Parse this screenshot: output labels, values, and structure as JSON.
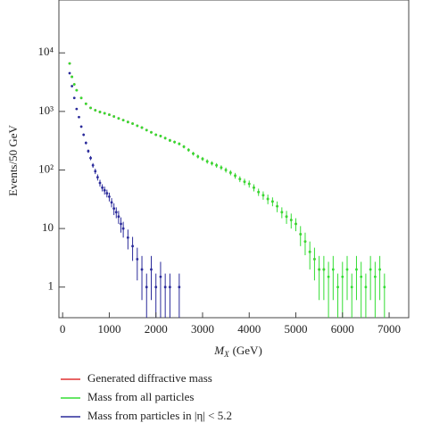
{
  "chart_data": {
    "type": "scatter",
    "x_label": "M",
    "x_label_sub": "X",
    "x_label_unit": "(GeV)",
    "y_label": "Events/50 GeV",
    "xlim": [
      -80,
      7420
    ],
    "ylim": [
      0.3,
      80000
    ],
    "log_y": true,
    "xticks": [
      0,
      1000,
      2000,
      3000,
      4000,
      5000,
      6000,
      7000
    ],
    "yticks": [
      1,
      10,
      {
        "value": 100,
        "label": "10²"
      },
      {
        "value": 1000,
        "label": "10³"
      },
      {
        "value": 10000,
        "label": "10⁴"
      }
    ],
    "series": [
      {
        "name": "Generated diffractive mass",
        "color": "#e03030",
        "x": [
          150,
          200,
          250,
          300,
          400,
          500,
          600,
          700,
          800,
          900,
          1000,
          1100,
          1200,
          1300,
          1400,
          1500,
          1600,
          1700,
          1800,
          1900,
          2000,
          2100,
          2200,
          2300,
          2400,
          2500,
          2600,
          2700,
          2800,
          2900,
          3000,
          3100,
          3200,
          3300,
          3400,
          3500,
          3600,
          3700,
          3800,
          3900,
          4000,
          4100,
          4200,
          4300,
          4400,
          4500,
          4600,
          4700,
          4800,
          4900,
          5000,
          5100,
          5200,
          5300,
          5400,
          5500,
          5600
        ],
        "values": [
          6600,
          3900,
          2900,
          2300,
          1700,
          1350,
          1150,
          1050,
          980,
          930,
          880,
          820,
          760,
          710,
          660,
          620,
          570,
          530,
          480,
          440,
          400,
          380,
          350,
          320,
          300,
          280,
          250,
          220,
          190,
          170,
          155,
          140,
          130,
          120,
          110,
          100,
          90,
          80,
          70,
          63,
          58,
          50,
          42,
          37,
          32,
          29,
          24,
          19,
          16,
          14,
          12,
          8,
          6,
          4,
          3,
          2,
          2
        ]
      },
      {
        "name": "Mass from all particles",
        "color": "#33dd33",
        "x": [
          150,
          200,
          250,
          300,
          400,
          500,
          600,
          700,
          800,
          900,
          1000,
          1100,
          1200,
          1300,
          1400,
          1500,
          1600,
          1700,
          1800,
          1900,
          2000,
          2100,
          2200,
          2300,
          2400,
          2500,
          2600,
          2700,
          2800,
          2900,
          3000,
          3100,
          3200,
          3300,
          3400,
          3500,
          3600,
          3700,
          3800,
          3900,
          4000,
          4100,
          4200,
          4300,
          4400,
          4500,
          4600,
          4700,
          4800,
          4900,
          5000,
          5100,
          5200,
          5300,
          5400,
          5500,
          5600,
          5700,
          5800,
          5900,
          6000,
          6100,
          6200,
          6300,
          6400,
          6500,
          6600,
          6700,
          6800,
          6900
        ],
        "values": [
          6600,
          3900,
          2900,
          2300,
          1700,
          1350,
          1150,
          1050,
          980,
          930,
          880,
          820,
          760,
          710,
          660,
          620,
          570,
          530,
          480,
          440,
          400,
          380,
          350,
          320,
          300,
          280,
          250,
          220,
          190,
          170,
          155,
          140,
          130,
          120,
          110,
          100,
          90,
          80,
          70,
          63,
          58,
          50,
          42,
          37,
          32,
          29,
          24,
          19,
          16,
          14,
          12,
          8,
          6,
          4,
          3,
          2,
          2,
          1.5,
          2,
          1,
          1.5,
          2,
          1,
          2,
          1.5,
          1,
          2,
          1.5,
          2,
          1
        ],
        "errors": [
          80,
          60,
          50,
          48,
          40,
          36,
          34,
          32,
          31,
          30,
          30,
          29,
          28,
          27,
          26,
          25,
          24,
          23,
          22,
          21,
          20,
          19,
          19,
          18,
          17,
          17,
          16,
          15,
          14,
          13,
          12,
          12,
          11,
          11,
          10,
          10,
          9,
          9,
          8,
          8,
          8,
          7,
          6,
          6,
          6,
          5,
          5,
          4,
          4,
          4,
          3,
          3,
          2.5,
          2,
          1.7,
          1.4,
          1.4,
          1.2,
          1.4,
          0.7,
          1.2,
          1.4,
          0.7,
          1.4,
          1.2,
          0.7,
          1.4,
          1.2,
          1.4,
          0.7
        ]
      },
      {
        "name": "Mass from particles in |η| < 5.2",
        "color": "#2a2a9a",
        "x": [
          150,
          200,
          250,
          300,
          350,
          400,
          450,
          500,
          550,
          600,
          650,
          700,
          750,
          800,
          850,
          900,
          950,
          1000,
          1050,
          1100,
          1150,
          1200,
          1250,
          1300,
          1400,
          1500,
          1600,
          1700,
          1800,
          1900,
          2000,
          2100,
          2200,
          2300,
          2500
        ],
        "values": [
          4500,
          2700,
          1700,
          1100,
          800,
          550,
          400,
          290,
          210,
          160,
          120,
          95,
          75,
          60,
          50,
          45,
          40,
          35,
          28,
          22,
          19,
          16,
          12,
          10,
          7,
          5,
          3,
          2,
          1,
          2,
          1,
          1.5,
          1,
          1,
          1
        ],
        "errors": [
          67,
          52,
          41,
          33,
          28,
          23,
          20,
          17,
          14,
          13,
          11,
          10,
          9,
          8,
          7,
          7,
          6,
          6,
          5,
          5,
          4,
          4,
          3.5,
          3,
          2.6,
          2.2,
          1.7,
          1.4,
          0.7,
          1.4,
          0.7,
          1.2,
          0.7,
          0.7,
          0.7
        ]
      }
    ]
  }
}
